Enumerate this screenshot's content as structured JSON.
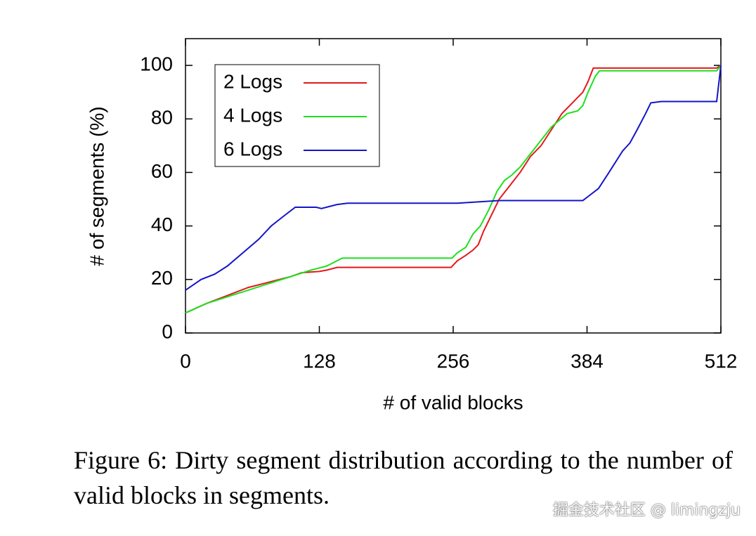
{
  "chart_data": {
    "type": "line",
    "xlabel": "# of valid blocks",
    "ylabel": "# of segments (%)",
    "xlim": [
      0,
      512
    ],
    "xticks": [
      0,
      128,
      256,
      384,
      512
    ],
    "ylim": [
      0,
      110
    ],
    "yticks": [
      0,
      20,
      40,
      60,
      80,
      100
    ],
    "legend": "top-left",
    "series": [
      {
        "name": "2 Logs",
        "color": "#e3181c",
        "x": [
          0,
          20,
          40,
          60,
          80,
          100,
          111,
          128,
          135,
          145,
          200,
          254,
          260,
          268,
          275,
          280,
          285,
          290,
          295,
          300,
          310,
          320,
          330,
          340,
          350,
          360,
          370,
          380,
          385,
          390,
          400,
          508,
          512
        ],
        "values": [
          7.5,
          11,
          14,
          17,
          19,
          21,
          22.5,
          23,
          23.5,
          24.5,
          24.5,
          24.5,
          27,
          29,
          31,
          33,
          38,
          42,
          46,
          50,
          55,
          60,
          66,
          70,
          76,
          82,
          86,
          90,
          94,
          99,
          99,
          99,
          100
        ]
      },
      {
        "name": "4 Logs",
        "color": "#1ee01e",
        "x": [
          0,
          20,
          40,
          60,
          80,
          100,
          120,
          135,
          150,
          200,
          255,
          260,
          268,
          275,
          282,
          290,
          298,
          305,
          312,
          320,
          330,
          340,
          350,
          365,
          375,
          380,
          385,
          392,
          396,
          400,
          508,
          512
        ],
        "values": [
          7.5,
          11,
          13.5,
          16,
          18.5,
          21,
          23.5,
          25,
          28,
          28,
          28,
          30,
          32,
          37,
          40,
          46,
          53,
          57,
          59,
          62,
          67,
          72,
          77,
          82,
          83,
          85,
          90,
          96,
          98,
          98,
          98,
          100
        ]
      },
      {
        "name": "6 Logs",
        "color": "#1414c8",
        "x": [
          0,
          15,
          28,
          40,
          55,
          70,
          82,
          95,
          105,
          125,
          130,
          145,
          155,
          260,
          280,
          300,
          380,
          385,
          395,
          405,
          418,
          425,
          432,
          440,
          445,
          455,
          508,
          512
        ],
        "values": [
          16,
          20,
          22,
          25,
          30,
          35,
          40,
          44,
          47,
          47,
          46.5,
          48,
          48.5,
          48.5,
          49,
          49.5,
          49.5,
          51,
          54,
          60,
          68,
          71,
          76,
          82,
          86,
          86.5,
          86.5,
          100
        ]
      }
    ]
  },
  "caption": "Figure 6: Dirty segment distribution according to the number of valid blocks in segments.",
  "watermark": "掘金技术社区 @ limingzju"
}
